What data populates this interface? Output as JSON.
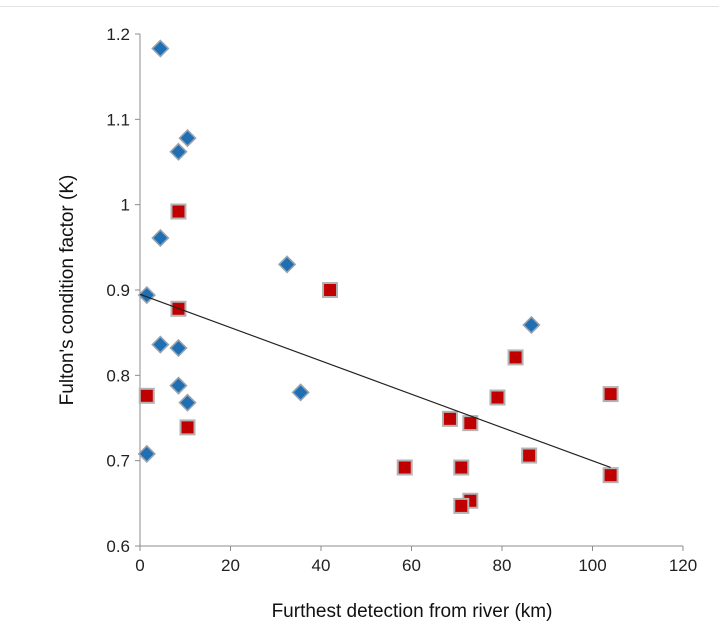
{
  "chart_data": {
    "type": "scatter",
    "title": "",
    "xlabel": "Furthest detection from river (km)",
    "ylabel": "Fulton's condition factor (K)",
    "xlim": [
      0,
      120
    ],
    "ylim": [
      0.6,
      1.2
    ],
    "x_ticks": [
      "0",
      "20",
      "40",
      "60",
      "80",
      "100",
      "120"
    ],
    "y_ticks": [
      "0.6",
      "0.7",
      "0.8",
      "0.9",
      "1",
      "1.1",
      "1.2"
    ],
    "grid": false,
    "legend": "none",
    "series": [
      {
        "marker": "diamond",
        "color": "#1f6fb4",
        "points": [
          [
            4.5,
            1.183
          ],
          [
            10.5,
            1.078
          ],
          [
            8.5,
            1.062
          ],
          [
            4.5,
            0.961
          ],
          [
            1.5,
            0.894
          ],
          [
            4.5,
            0.836
          ],
          [
            8.5,
            0.832
          ],
          [
            8.5,
            0.788
          ],
          [
            10.5,
            0.768
          ],
          [
            1.5,
            0.708
          ],
          [
            32.5,
            0.93
          ],
          [
            35.5,
            0.78
          ],
          [
            86.5,
            0.859
          ]
        ]
      },
      {
        "marker": "square",
        "color": "#c00000",
        "points": [
          [
            8.5,
            0.992
          ],
          [
            8.5,
            0.878
          ],
          [
            1.5,
            0.776
          ],
          [
            10.5,
            0.739
          ],
          [
            42.0,
            0.9
          ],
          [
            58.5,
            0.692
          ],
          [
            68.5,
            0.749
          ],
          [
            71.0,
            0.692
          ],
          [
            73.0,
            0.744
          ],
          [
            73.0,
            0.653
          ],
          [
            71.0,
            0.647
          ],
          [
            79.0,
            0.774
          ],
          [
            83.0,
            0.821
          ],
          [
            86.0,
            0.706
          ],
          [
            104.0,
            0.778
          ],
          [
            104.0,
            0.683
          ]
        ]
      }
    ],
    "trendline": {
      "type": "linear",
      "x": [
        0,
        104
      ],
      "y": [
        0.895,
        0.692
      ],
      "color": "#222222"
    }
  }
}
